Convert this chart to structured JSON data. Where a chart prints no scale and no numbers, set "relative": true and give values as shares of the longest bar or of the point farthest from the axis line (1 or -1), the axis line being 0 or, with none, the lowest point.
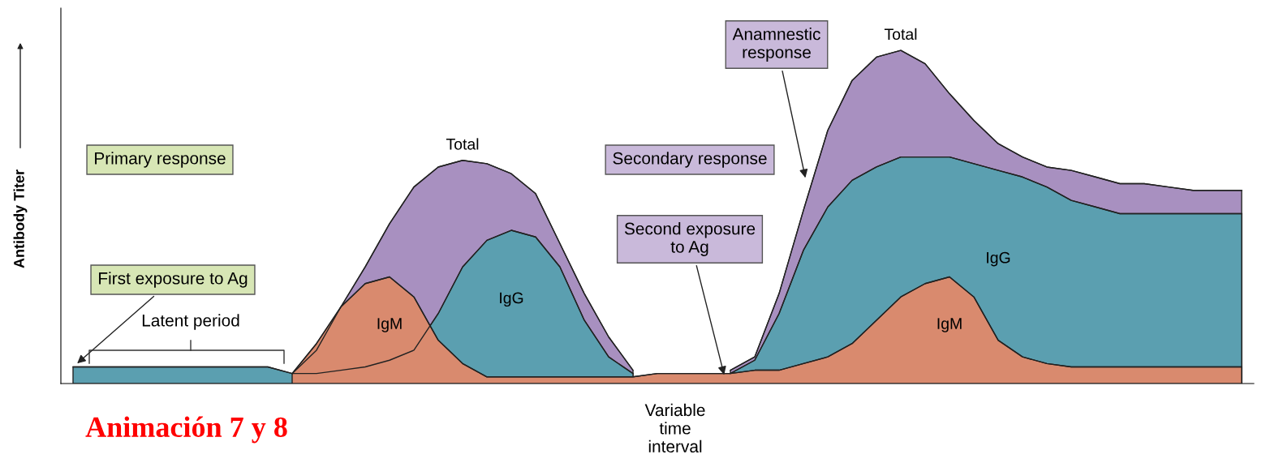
{
  "chart_data": {
    "type": "area",
    "relative": true,
    "ylabel": "Antibody Titer",
    "categories": [
      null,
      null,
      null,
      null,
      null,
      null,
      null,
      null,
      null,
      null,
      null,
      null,
      null,
      null,
      null,
      null,
      null,
      null,
      null,
      null,
      null,
      null,
      null,
      null,
      null,
      null,
      null,
      null,
      null,
      null,
      null,
      null,
      null,
      null,
      null,
      null,
      null,
      null,
      null,
      null,
      null,
      null,
      null,
      null,
      null,
      null,
      null,
      null,
      null
    ],
    "series": [
      {
        "name": "Total",
        "color": "#a890c0",
        "values": [
          null,
          null,
          null,
          null,
          null,
          null,
          null,
          null,
          null,
          0.03,
          0.1,
          0.23,
          0.35,
          0.48,
          0.59,
          0.65,
          0.67,
          0.66,
          0.63,
          0.57,
          0.42,
          0.27,
          0.14,
          0.04,
          null,
          null,
          null,
          0.04,
          0.08,
          0.27,
          0.52,
          0.76,
          0.91,
          0.98,
          1.0,
          0.96,
          0.87,
          0.79,
          0.72,
          0.68,
          0.65,
          0.64,
          0.62,
          0.6,
          0.6,
          0.59,
          0.58,
          0.58,
          0.58
        ]
      },
      {
        "name": "IgG",
        "color": "#5b9fb0",
        "values": [
          0.05,
          0.05,
          0.05,
          0.05,
          0.05,
          0.05,
          0.05,
          0.05,
          0.05,
          0.03,
          0.03,
          0.04,
          0.05,
          0.07,
          0.1,
          0.21,
          0.35,
          0.43,
          0.46,
          0.44,
          0.35,
          0.19,
          0.08,
          0.03,
          null,
          null,
          null,
          0.03,
          0.07,
          0.21,
          0.4,
          0.53,
          0.61,
          0.65,
          0.68,
          0.68,
          0.68,
          0.66,
          0.64,
          0.62,
          0.59,
          0.55,
          0.53,
          0.51,
          0.51,
          0.51,
          0.51,
          0.51,
          0.51
        ]
      },
      {
        "name": "IgM",
        "color": "#d98a6e",
        "values": [
          null,
          null,
          null,
          null,
          null,
          null,
          null,
          null,
          null,
          0.03,
          0.12,
          0.23,
          0.3,
          0.32,
          0.26,
          0.13,
          0.06,
          0.02,
          0.02,
          0.02,
          0.02,
          0.02,
          0.02,
          0.02,
          0.03,
          0.03,
          0.03,
          0.03,
          0.04,
          0.04,
          0.06,
          0.08,
          0.12,
          0.19,
          0.26,
          0.3,
          0.32,
          0.26,
          0.13,
          0.08,
          0.06,
          0.05,
          0.05,
          0.05,
          0.05,
          0.05,
          0.05,
          0.05,
          0.05
        ]
      }
    ],
    "annotations": [
      "Primary response",
      "First exposure to Ag",
      "Latent period",
      "Secondary response",
      "Second exposure\nto Ag",
      "Anamnestic\nresponse",
      "Variable\ntime\ninterval",
      "Animación 7 y 8"
    ]
  }
}
